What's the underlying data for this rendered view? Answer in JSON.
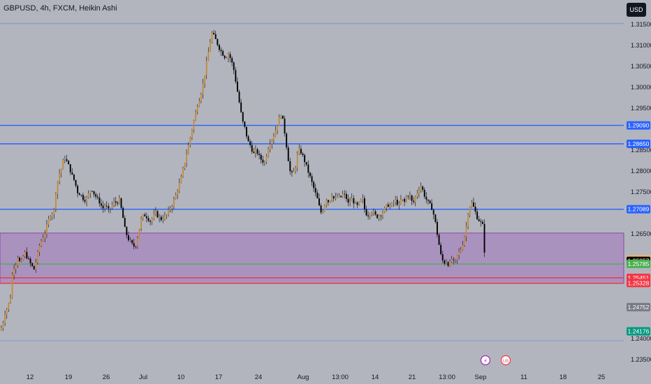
{
  "header": {
    "title": "GBPUSD, 4h, FXCM, Heikin Ashi",
    "currency_label": "USD"
  },
  "colors": {
    "background": "#b2b5be",
    "candle_up": "#c58a3d",
    "candle_down": "#000000",
    "wick": "#1a1a1a",
    "blue_line": "#2962ff",
    "red_line": "#f23645",
    "green_line": "#4caf50",
    "zone_fill": "#9c4fc4",
    "zone_border": "#8e44ad",
    "dotted_line": "#5b7fd0",
    "grid_text": "#131722"
  },
  "chart_data": {
    "type": "candlestick",
    "symbol": "GBPUSD",
    "interval": "4h",
    "exchange": "FXCM",
    "style": "Heikin Ashi",
    "grid": false,
    "ylim": [
      1.2325,
      1.3175
    ],
    "y_ticks": [
      "1.31500",
      "1.31000",
      "1.30500",
      "1.30000",
      "1.29500",
      "1.28500",
      "1.28000",
      "1.27500",
      "1.26500",
      "1.24000",
      "1.23500"
    ],
    "x_tick_labels": [
      "12",
      "19",
      "26",
      "Jul",
      "10",
      "17",
      "24",
      "Aug",
      "13:00",
      "14",
      "21",
      "13:00",
      "Sep",
      "11",
      "18",
      "25"
    ],
    "horizontal_levels": [
      {
        "price": 1.2909,
        "label": "1.29090",
        "style": "solid",
        "color": "blue"
      },
      {
        "price": 1.2865,
        "label": "1.28650",
        "style": "solid",
        "color": "blue"
      },
      {
        "price": 1.27089,
        "label": "1.27089",
        "style": "solid",
        "color": "blue"
      },
      {
        "price": 1.2578,
        "label": "",
        "style": "solid",
        "color": "green"
      },
      {
        "price": 1.2545,
        "label": "",
        "style": "solid",
        "color": "red"
      },
      {
        "price": 1.2532,
        "label": "",
        "style": "solid",
        "color": "red"
      },
      {
        "price": 1.3152,
        "label": "",
        "style": "dotted",
        "color": "blue"
      },
      {
        "price": 1.2395,
        "label": "",
        "style": "dotted",
        "color": "blue"
      }
    ],
    "zone": {
      "top": 1.2652,
      "bottom": 1.2532
    },
    "price_labels": [
      {
        "text": "1.29090",
        "price": 1.2909,
        "bg": "#2962ff",
        "fg": "#ffffff"
      },
      {
        "text": "1.28650",
        "price": 1.2865,
        "bg": "#2962ff",
        "fg": "#ffffff"
      },
      {
        "text": "1.27089",
        "price": 1.27089,
        "bg": "#2962ff",
        "fg": "#ffffff"
      },
      {
        "text": "1.25888",
        "price": 1.25888,
        "bg": "#ffb74d",
        "fg": "#131722"
      },
      {
        "text": "1.25857",
        "price": 1.25857,
        "bg": "#000000",
        "fg": "#ffffff"
      },
      {
        "text": "1.25785",
        "price": 1.25785,
        "bg": "#4caf50",
        "fg": "#ffffff"
      },
      {
        "text": "1.25451",
        "price": 1.25451,
        "bg": "#f23645",
        "fg": "#ffffff"
      },
      {
        "text": "1.25328",
        "price": 1.25328,
        "bg": "#f23645",
        "fg": "#ffffff"
      },
      {
        "text": "1.24752",
        "price": 1.24752,
        "bg": "#787b86",
        "fg": "#ffffff"
      },
      {
        "text": "1.24176",
        "price": 1.24176,
        "bg": "#089981",
        "fg": "#ffffff"
      }
    ],
    "close_path": [
      [
        0,
        1.242
      ],
      [
        3,
        1.2435
      ],
      [
        6,
        1.246
      ],
      [
        10,
        1.2475
      ],
      [
        14,
        1.25
      ],
      [
        17,
        1.256
      ],
      [
        19,
        1.257
      ],
      [
        22,
        1.258
      ],
      [
        25,
        1.26
      ],
      [
        28,
        1.2575
      ],
      [
        32,
        1.2595
      ],
      [
        35,
        1.2605
      ],
      [
        39,
        1.259
      ],
      [
        44,
        1.2575
      ],
      [
        48,
        1.2565
      ],
      [
        52,
        1.2595
      ],
      [
        56,
        1.2625
      ],
      [
        60,
        1.264
      ],
      [
        64,
        1.2655
      ],
      [
        68,
        1.268
      ],
      [
        72,
        1.27
      ],
      [
        76,
        1.27
      ],
      [
        79,
        1.275
      ],
      [
        83,
        1.279
      ],
      [
        87,
        1.2805
      ],
      [
        91,
        1.2835
      ],
      [
        94,
        1.2825
      ],
      [
        98,
        1.281
      ],
      [
        102,
        1.279
      ],
      [
        106,
        1.2775
      ],
      [
        110,
        1.275
      ],
      [
        114,
        1.2745
      ],
      [
        118,
        1.2735
      ],
      [
        122,
        1.273
      ],
      [
        126,
        1.2745
      ],
      [
        130,
        1.276
      ],
      [
        134,
        1.2745
      ],
      [
        138,
        1.2735
      ],
      [
        142,
        1.2725
      ],
      [
        146,
        1.271
      ],
      [
        150,
        1.272
      ],
      [
        154,
        1.2705
      ],
      [
        158,
        1.2715
      ],
      [
        162,
        1.2725
      ],
      [
        166,
        1.2725
      ],
      [
        170,
        1.273
      ],
      [
        174,
        1.27
      ],
      [
        178,
        1.266
      ],
      [
        182,
        1.264
      ],
      [
        186,
        1.263
      ],
      [
        190,
        1.262
      ],
      [
        194,
        1.2625
      ],
      [
        198,
        1.266
      ],
      [
        202,
        1.269
      ],
      [
        206,
        1.2695
      ],
      [
        210,
        1.269
      ],
      [
        214,
        1.268
      ],
      [
        218,
        1.269
      ],
      [
        222,
        1.27
      ],
      [
        226,
        1.269
      ],
      [
        230,
        1.2685
      ],
      [
        234,
        1.269
      ],
      [
        238,
        1.2695
      ],
      [
        242,
        1.271
      ],
      [
        246,
        1.272
      ],
      [
        250,
        1.274
      ],
      [
        254,
        1.276
      ],
      [
        258,
        1.278
      ],
      [
        262,
        1.281
      ],
      [
        266,
        1.284
      ],
      [
        270,
        1.287
      ],
      [
        274,
        1.29
      ],
      [
        278,
        1.293
      ],
      [
        282,
        1.296
      ],
      [
        286,
        1.298
      ],
      [
        290,
        1.301
      ],
      [
        294,
        1.305
      ],
      [
        298,
        1.309
      ],
      [
        302,
        1.313
      ],
      [
        306,
        1.312
      ],
      [
        310,
        1.3105
      ],
      [
        314,
        1.309
      ],
      [
        318,
        1.308
      ],
      [
        322,
        1.307
      ],
      [
        326,
        1.308
      ],
      [
        330,
        1.3065
      ],
      [
        334,
        1.304
      ],
      [
        338,
        1.3
      ],
      [
        342,
        1.296
      ],
      [
        346,
        1.292
      ],
      [
        350,
        1.29
      ],
      [
        354,
        1.287
      ],
      [
        358,
        1.286
      ],
      [
        362,
        1.284
      ],
      [
        366,
        1.285
      ],
      [
        370,
        1.2835
      ],
      [
        374,
        1.2825
      ],
      [
        378,
        1.282
      ],
      [
        382,
        1.285
      ],
      [
        386,
        1.287
      ],
      [
        390,
        1.288
      ],
      [
        394,
        1.29
      ],
      [
        398,
        1.292
      ],
      [
        402,
        1.294
      ],
      [
        406,
        1.29
      ],
      [
        410,
        1.285
      ],
      [
        414,
        1.28
      ],
      [
        418,
        1.279
      ],
      [
        422,
        1.281
      ],
      [
        426,
        1.285
      ],
      [
        430,
        1.2845
      ],
      [
        434,
        1.283
      ],
      [
        438,
        1.281
      ],
      [
        442,
        1.279
      ],
      [
        446,
        1.277
      ],
      [
        450,
        1.275
      ],
      [
        454,
        1.273
      ],
      [
        458,
        1.27
      ],
      [
        462,
        1.271
      ],
      [
        466,
        1.2735
      ],
      [
        470,
        1.2725
      ],
      [
        474,
        1.2745
      ],
      [
        478,
        1.273
      ],
      [
        482,
        1.274
      ],
      [
        486,
        1.2735
      ],
      [
        490,
        1.2745
      ],
      [
        494,
        1.274
      ],
      [
        498,
        1.272
      ],
      [
        502,
        1.2735
      ],
      [
        506,
        1.2725
      ],
      [
        510,
        1.2715
      ],
      [
        514,
        1.2725
      ],
      [
        518,
        1.2735
      ],
      [
        522,
        1.27
      ],
      [
        526,
        1.2695
      ],
      [
        530,
        1.2705
      ],
      [
        534,
        1.27
      ],
      [
        538,
        1.269
      ],
      [
        542,
        1.2695
      ],
      [
        546,
        1.27
      ],
      [
        550,
        1.271
      ],
      [
        554,
        1.272
      ],
      [
        558,
        1.2715
      ],
      [
        562,
        1.2725
      ],
      [
        566,
        1.273
      ],
      [
        570,
        1.2715
      ],
      [
        574,
        1.2735
      ],
      [
        578,
        1.2725
      ],
      [
        582,
        1.2745
      ],
      [
        586,
        1.274
      ],
      [
        590,
        1.272
      ],
      [
        594,
        1.274
      ],
      [
        598,
        1.2755
      ],
      [
        602,
        1.2765
      ],
      [
        606,
        1.2745
      ],
      [
        610,
        1.273
      ],
      [
        614,
        1.272
      ],
      [
        618,
        1.271
      ],
      [
        622,
        1.268
      ],
      [
        626,
        1.264
      ],
      [
        630,
        1.26
      ],
      [
        634,
        1.258
      ],
      [
        638,
        1.2585
      ],
      [
        642,
        1.2575
      ],
      [
        646,
        1.259
      ],
      [
        650,
        1.258
      ],
      [
        654,
        1.26
      ],
      [
        658,
        1.261
      ],
      [
        662,
        1.263
      ],
      [
        666,
        1.266
      ],
      [
        670,
        1.271
      ],
      [
        674,
        1.2725
      ],
      [
        678,
        1.271
      ],
      [
        682,
        1.269
      ],
      [
        686,
        1.268
      ],
      [
        690,
        1.267
      ],
      [
        693,
        1.26
      ],
      [
        695,
        1.2585
      ]
    ]
  },
  "events": {
    "lightning_symbol": "⚡",
    "flag_symbol": "US"
  }
}
